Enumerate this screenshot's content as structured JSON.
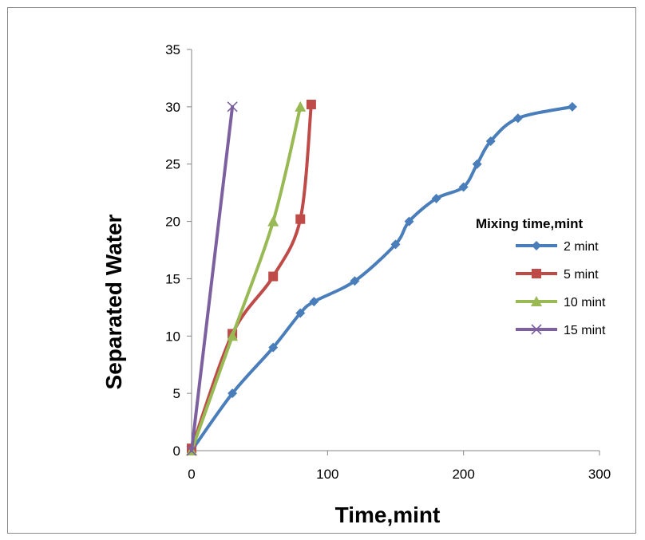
{
  "chart_data": {
    "type": "line",
    "title": "",
    "xlabel": "Time,mint",
    "ylabel": "Separated Water",
    "xlim": [
      0,
      300
    ],
    "ylim": [
      0,
      35
    ],
    "xticks": [
      0,
      100,
      200,
      300
    ],
    "yticks": [
      0,
      5,
      10,
      15,
      20,
      25,
      30,
      35
    ],
    "grid": false,
    "legend_title": "Mixing time,mint",
    "legend_position": "right",
    "series": [
      {
        "name": "2 mint",
        "color": "#4A7EBB",
        "marker": "diamond",
        "points": [
          [
            0,
            0
          ],
          [
            30,
            5
          ],
          [
            60,
            9
          ],
          [
            80,
            12
          ],
          [
            90,
            13
          ],
          [
            120,
            14.8
          ],
          [
            150,
            18
          ],
          [
            160,
            20
          ],
          [
            180,
            22
          ],
          [
            200,
            23
          ],
          [
            210,
            25
          ],
          [
            220,
            27
          ],
          [
            240,
            29
          ],
          [
            280,
            30
          ]
        ]
      },
      {
        "name": "5 mint",
        "color": "#BE4B48",
        "marker": "square",
        "points": [
          [
            0,
            0.2
          ],
          [
            30,
            10.2
          ],
          [
            60,
            15.2
          ],
          [
            80,
            20.2
          ],
          [
            88,
            30.2
          ]
        ]
      },
      {
        "name": "10 mint",
        "color": "#98B954",
        "marker": "triangle",
        "points": [
          [
            0,
            0
          ],
          [
            30,
            10
          ],
          [
            60,
            20
          ],
          [
            80,
            30
          ]
        ]
      },
      {
        "name": "15 mint",
        "color": "#7D60A0",
        "marker": "x",
        "points": [
          [
            0,
            0
          ],
          [
            30,
            30
          ]
        ]
      }
    ]
  }
}
